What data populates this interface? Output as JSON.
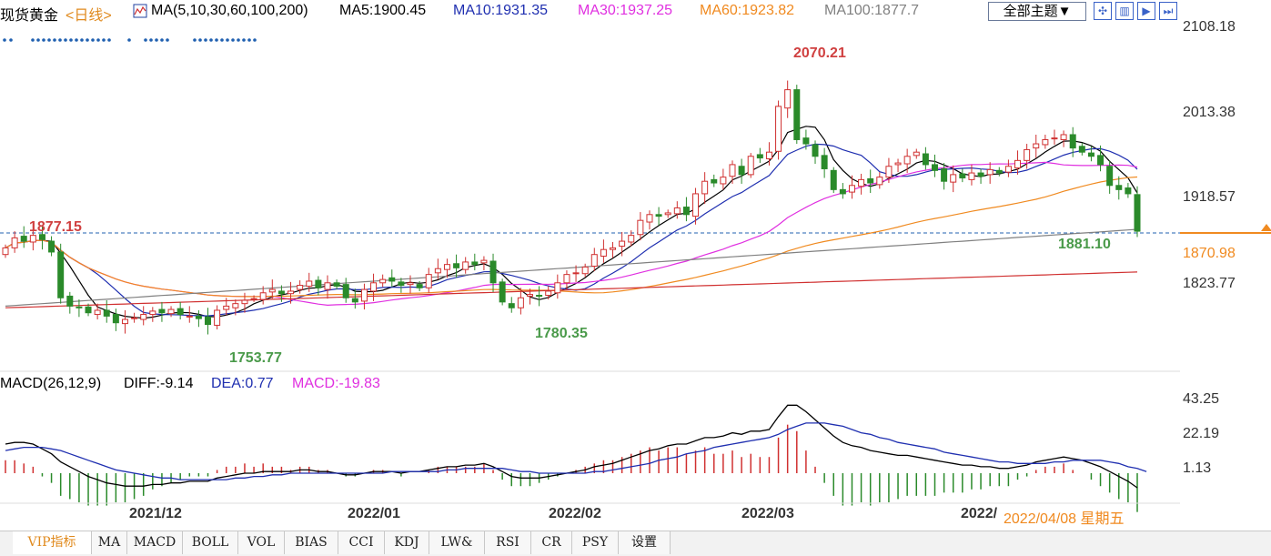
{
  "header": {
    "instrument": "现货黄金",
    "period": "<日线>",
    "ma_params": "MA(5,10,30,60,100,200)",
    "ma5": "MA5:1900.45",
    "ma10": "MA10:1931.35",
    "ma30": "MA30:1937.25",
    "ma60": "MA60:1923.82",
    "ma100": "MA100:1877.7",
    "theme_button": "全部主题▼",
    "colors": {
      "ma5": "#000000",
      "ma10": "#1f2fb0",
      "ma30": "#e030e0",
      "ma60": "#f08a20",
      "ma100": "#808080",
      "ma200": "#d03030",
      "up": "#d03030",
      "down": "#2a8a2a"
    }
  },
  "view_buttons": [
    "crosshair-icon",
    "split-icon",
    "play-icon",
    "next-icon"
  ],
  "price_axis": {
    "ticks": [
      "2108.18",
      "2013.38",
      "1918.57",
      "1823.77"
    ],
    "current_price": "1870.98",
    "ylim": [
      1715,
      2125
    ]
  },
  "annotations": {
    "left_high": "1877.15",
    "left_low": "1753.77",
    "mid_low": "1780.35",
    "peak_high": "2070.21",
    "right_low": "1881.10"
  },
  "macd": {
    "title": "MACD(26,12,9)",
    "diff": "DIFF:-9.14",
    "dea": "DEA:0.77",
    "macd": "MACD:-19.83",
    "ticks": [
      "43.25",
      "22.19",
      "1.13"
    ]
  },
  "dates": [
    "2021/12",
    "2022/01",
    "2022/02",
    "2022/03",
    "2022/"
  ],
  "selected_date": "2022/04/08 星期五",
  "tabs": [
    "VIP指标",
    "MA",
    "MACD",
    "BOLL",
    "VOL",
    "BIAS",
    "CCI",
    "KDJ",
    "LW&",
    "RSI",
    "CR",
    "PSY",
    "设置"
  ],
  "chart_data": {
    "type": "candlestick",
    "close": [
      1860,
      1872,
      1868,
      1875,
      1870,
      1855,
      1800,
      1790,
      1788,
      1782,
      1785,
      1778,
      1770,
      1774,
      1776,
      1780,
      1784,
      1782,
      1786,
      1780,
      1778,
      1775,
      1768,
      1785,
      1790,
      1793,
      1797,
      1799,
      1806,
      1810,
      1805,
      1808,
      1815,
      1820,
      1812,
      1818,
      1814,
      1800,
      1795,
      1810,
      1818,
      1822,
      1820,
      1815,
      1818,
      1812,
      1828,
      1835,
      1840,
      1836,
      1843,
      1840,
      1845,
      1818,
      1795,
      1788,
      1800,
      1804,
      1802,
      1808,
      1818,
      1828,
      1830,
      1837,
      1852,
      1858,
      1860,
      1868,
      1875,
      1893,
      1900,
      1898,
      1902,
      1908,
      1900,
      1925,
      1940,
      1938,
      1945,
      1960,
      1948,
      1970,
      1968,
      1975,
      2030,
      2050,
      1990,
      1985,
      1970,
      1955,
      1930,
      1925,
      1935,
      1942,
      1938,
      1945,
      1958,
      1962,
      1970,
      1975,
      1960,
      1953,
      1940,
      1948,
      1944,
      1950,
      1946,
      1954,
      1950,
      1958,
      1965,
      1978,
      1985,
      1990,
      1992,
      1996,
      1980,
      1975,
      1970,
      1960,
      1935,
      1930,
      1925,
      1880
    ],
    "macd_diff": [
      18,
      19,
      19,
      18,
      15,
      12,
      7,
      4,
      1,
      -2,
      -4,
      -6,
      -7,
      -8,
      -8,
      -8,
      -7,
      -7,
      -6,
      -6,
      -5,
      -5,
      -5,
      -3,
      -2,
      -1,
      0,
      0,
      1,
      1,
      1,
      1,
      2,
      2,
      1,
      1,
      0,
      -1,
      -1,
      0,
      1,
      1,
      1,
      0,
      1,
      1,
      2,
      3,
      4,
      4,
      5,
      5,
      6,
      4,
      1,
      -2,
      -3,
      -3,
      -3,
      -2,
      -1,
      0,
      1,
      2,
      4,
      5,
      6,
      8,
      10,
      12,
      14,
      15,
      17,
      18,
      18,
      20,
      22,
      22,
      23,
      25,
      24,
      26,
      26,
      27,
      35,
      42,
      42,
      38,
      33,
      28,
      23,
      19,
      17,
      16,
      14,
      13,
      12,
      11,
      11,
      10,
      9,
      8,
      7,
      6,
      5,
      5,
      4,
      4,
      3,
      3,
      4,
      5,
      7,
      8,
      9,
      10,
      9,
      8,
      6,
      4,
      1,
      -2,
      -5,
      -9
    ],
    "macd_dea": [
      14,
      15,
      16,
      16,
      16,
      15,
      14,
      12,
      10,
      8,
      6,
      4,
      2,
      1,
      0,
      -1,
      -2,
      -3,
      -3,
      -4,
      -4,
      -4,
      -4,
      -4,
      -4,
      -3,
      -3,
      -2,
      -2,
      -1,
      -1,
      0,
      0,
      0,
      0,
      0,
      0,
      0,
      0,
      0,
      0,
      0,
      1,
      1,
      1,
      1,
      1,
      1,
      2,
      2,
      3,
      3,
      3,
      3,
      3,
      2,
      1,
      1,
      0,
      0,
      0,
      0,
      0,
      0,
      1,
      1,
      2,
      3,
      4,
      5,
      6,
      8,
      9,
      10,
      12,
      13,
      14,
      16,
      17,
      18,
      19,
      20,
      21,
      22,
      24,
      27,
      29,
      31,
      31,
      31,
      30,
      29,
      27,
      25,
      24,
      22,
      21,
      19,
      18,
      17,
      16,
      15,
      13,
      12,
      11,
      10,
      9,
      8,
      7,
      7,
      6,
      6,
      6,
      6,
      7,
      7,
      8,
      8,
      8,
      8,
      7,
      6,
      4,
      3,
      1
    ]
  }
}
